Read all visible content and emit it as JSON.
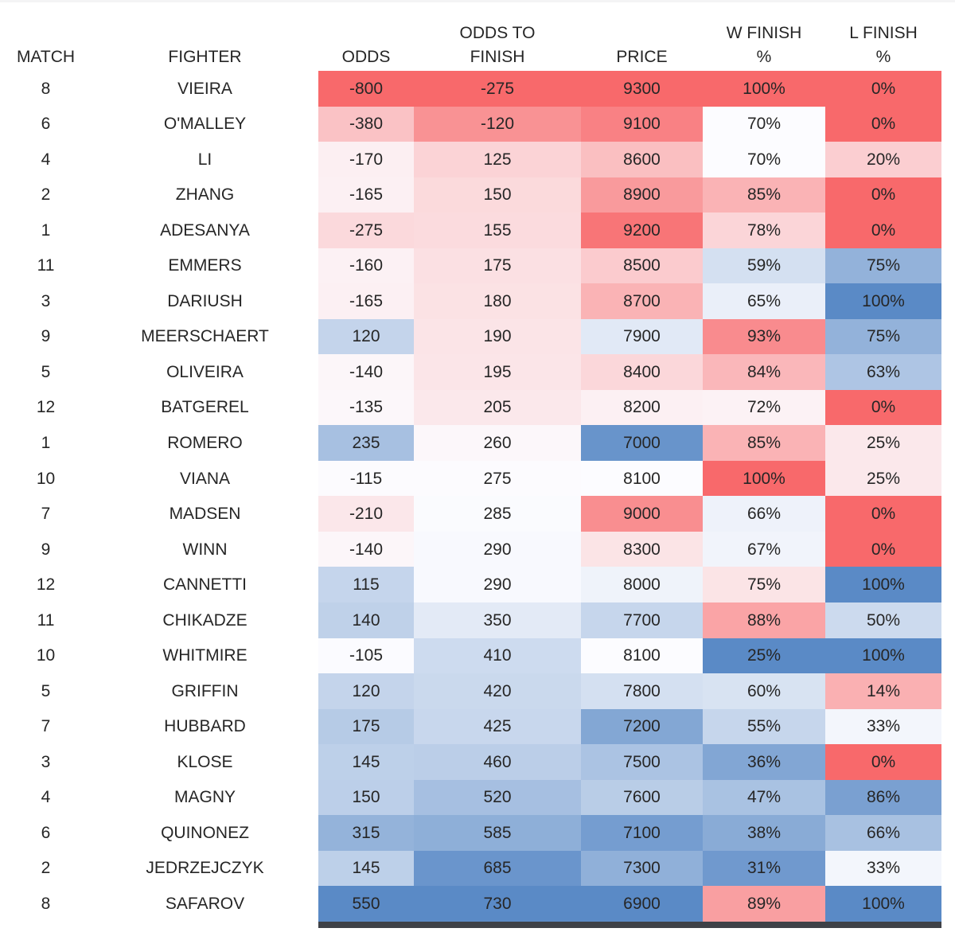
{
  "table": {
    "columns": [
      {
        "key": "match",
        "label": "MATCH",
        "format": "number"
      },
      {
        "key": "fighter",
        "label": "FIGHTER",
        "format": "text"
      },
      {
        "key": "odds",
        "label": "ODDS",
        "format": "number"
      },
      {
        "key": "odds_to_finish",
        "label": "ODDS TO\nFINISH",
        "format": "number"
      },
      {
        "key": "price",
        "label": "PRICE",
        "format": "number"
      },
      {
        "key": "w_finish",
        "label": "W FINISH\n%",
        "format": "percent"
      },
      {
        "key": "l_finish",
        "label": "L FINISH\n%",
        "format": "percent"
      }
    ],
    "rows": [
      {
        "match": 8,
        "fighter": "VIEIRA",
        "odds": -800,
        "odds_to_finish": -275,
        "price": 9300,
        "w_finish": 100,
        "l_finish": 0
      },
      {
        "match": 6,
        "fighter": "O'MALLEY",
        "odds": -380,
        "odds_to_finish": -120,
        "price": 9100,
        "w_finish": 70,
        "l_finish": 0
      },
      {
        "match": 4,
        "fighter": "LI",
        "odds": -170,
        "odds_to_finish": 125,
        "price": 8600,
        "w_finish": 70,
        "l_finish": 20
      },
      {
        "match": 2,
        "fighter": "ZHANG",
        "odds": -165,
        "odds_to_finish": 150,
        "price": 8900,
        "w_finish": 85,
        "l_finish": 0
      },
      {
        "match": 1,
        "fighter": "ADESANYA",
        "odds": -275,
        "odds_to_finish": 155,
        "price": 9200,
        "w_finish": 78,
        "l_finish": 0
      },
      {
        "match": 11,
        "fighter": "EMMERS",
        "odds": -160,
        "odds_to_finish": 175,
        "price": 8500,
        "w_finish": 59,
        "l_finish": 75
      },
      {
        "match": 3,
        "fighter": "DARIUSH",
        "odds": -165,
        "odds_to_finish": 180,
        "price": 8700,
        "w_finish": 65,
        "l_finish": 100
      },
      {
        "match": 9,
        "fighter": "MEERSCHAERT",
        "odds": 120,
        "odds_to_finish": 190,
        "price": 7900,
        "w_finish": 93,
        "l_finish": 75
      },
      {
        "match": 5,
        "fighter": "OLIVEIRA",
        "odds": -140,
        "odds_to_finish": 195,
        "price": 8400,
        "w_finish": 84,
        "l_finish": 63
      },
      {
        "match": 12,
        "fighter": "BATGEREL",
        "odds": -135,
        "odds_to_finish": 205,
        "price": 8200,
        "w_finish": 72,
        "l_finish": 0
      },
      {
        "match": 1,
        "fighter": "ROMERO",
        "odds": 235,
        "odds_to_finish": 260,
        "price": 7000,
        "w_finish": 85,
        "l_finish": 25
      },
      {
        "match": 10,
        "fighter": "VIANA",
        "odds": -115,
        "odds_to_finish": 275,
        "price": 8100,
        "w_finish": 100,
        "l_finish": 25
      },
      {
        "match": 7,
        "fighter": "MADSEN",
        "odds": -210,
        "odds_to_finish": 285,
        "price": 9000,
        "w_finish": 66,
        "l_finish": 0
      },
      {
        "match": 9,
        "fighter": "WINN",
        "odds": -140,
        "odds_to_finish": 290,
        "price": 8300,
        "w_finish": 67,
        "l_finish": 0
      },
      {
        "match": 12,
        "fighter": "CANNETTI",
        "odds": 115,
        "odds_to_finish": 290,
        "price": 8000,
        "w_finish": 75,
        "l_finish": 100
      },
      {
        "match": 11,
        "fighter": "CHIKADZE",
        "odds": 140,
        "odds_to_finish": 350,
        "price": 7700,
        "w_finish": 88,
        "l_finish": 50
      },
      {
        "match": 10,
        "fighter": "WHITMIRE",
        "odds": -105,
        "odds_to_finish": 410,
        "price": 8100,
        "w_finish": 25,
        "l_finish": 100
      },
      {
        "match": 5,
        "fighter": "GRIFFIN",
        "odds": 120,
        "odds_to_finish": 420,
        "price": 7800,
        "w_finish": 60,
        "l_finish": 14
      },
      {
        "match": 7,
        "fighter": "HUBBARD",
        "odds": 175,
        "odds_to_finish": 425,
        "price": 7200,
        "w_finish": 55,
        "l_finish": 33
      },
      {
        "match": 3,
        "fighter": "KLOSE",
        "odds": 145,
        "odds_to_finish": 460,
        "price": 7500,
        "w_finish": 36,
        "l_finish": 0
      },
      {
        "match": 4,
        "fighter": "MAGNY",
        "odds": 150,
        "odds_to_finish": 520,
        "price": 7600,
        "w_finish": 47,
        "l_finish": 86
      },
      {
        "match": 6,
        "fighter": "QUINONEZ",
        "odds": 315,
        "odds_to_finish": 585,
        "price": 7100,
        "w_finish": 38,
        "l_finish": 66
      },
      {
        "match": 2,
        "fighter": "JEDRZEJCZYK",
        "odds": 145,
        "odds_to_finish": 685,
        "price": 7300,
        "w_finish": 31,
        "l_finish": 33
      },
      {
        "match": 8,
        "fighter": "SAFAROV",
        "odds": 550,
        "odds_to_finish": 730,
        "price": 6900,
        "w_finish": 89,
        "l_finish": 100
      }
    ]
  },
  "heatmap": {
    "red": "#F8696B",
    "white": "#FCFCFF",
    "blue": "#5A8AC6",
    "columns": {
      "odds": {
        "min": -800,
        "mid": -110,
        "max": 550,
        "red_at": "min"
      },
      "odds_to_finish": {
        "min": -275,
        "mid": 280,
        "max": 730,
        "red_at": "min"
      },
      "price": {
        "min": 6900,
        "mid": 8100,
        "max": 9300,
        "red_at": "max"
      },
      "w_finish": {
        "min": 25,
        "mid": 70,
        "max": 100,
        "red_at": "max"
      },
      "l_finish": {
        "min": 0,
        "mid": 29,
        "max": 100,
        "red_at": "min"
      }
    }
  }
}
